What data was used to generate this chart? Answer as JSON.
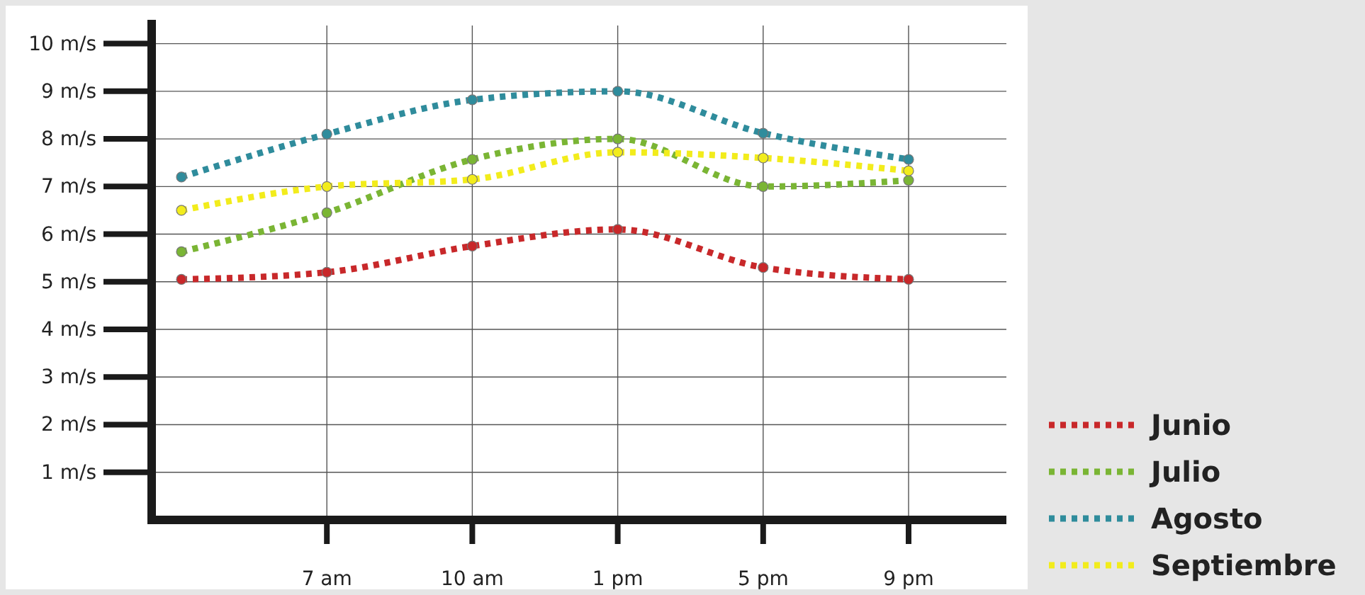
{
  "chart_data": {
    "type": "line",
    "categories": [
      null,
      "7 am",
      "10 am",
      "1 pm",
      "5 pm",
      "9 pm"
    ],
    "ylim": [
      0,
      10.5
    ],
    "yticks": [
      {
        "value": 1,
        "label": "1 m/s"
      },
      {
        "value": 2,
        "label": "2 m/s"
      },
      {
        "value": 3,
        "label": "3 m/s"
      },
      {
        "value": 4,
        "label": "4 m/s"
      },
      {
        "value": 5,
        "label": "5 m/s"
      },
      {
        "value": 6,
        "label": "6 m/s"
      },
      {
        "value": 7,
        "label": "7 m/s"
      },
      {
        "value": 8,
        "label": "8 m/s"
      },
      {
        "value": 9,
        "label": "9 m/s"
      },
      {
        "value": 10,
        "label": "10 m/s"
      }
    ],
    "grid": true,
    "legend": "bottom right",
    "marker": "circle",
    "line_style": "dotted",
    "series": [
      {
        "name": "Junio",
        "color": "#c8282a",
        "values": [
          5.05,
          5.2,
          5.75,
          6.1,
          5.3,
          5.05
        ]
      },
      {
        "name": "Julio",
        "color": "#7ab534",
        "values": [
          5.63,
          6.45,
          7.57,
          8.0,
          7.0,
          7.13
        ]
      },
      {
        "name": "Agosto",
        "color": "#2f8c9c",
        "values": [
          7.2,
          8.1,
          8.82,
          9.0,
          8.12,
          7.57
        ]
      },
      {
        "name": "Septiembre",
        "color": "#f2ec1c",
        "values": [
          6.5,
          7.0,
          7.15,
          7.72,
          7.6,
          7.33
        ]
      }
    ]
  }
}
